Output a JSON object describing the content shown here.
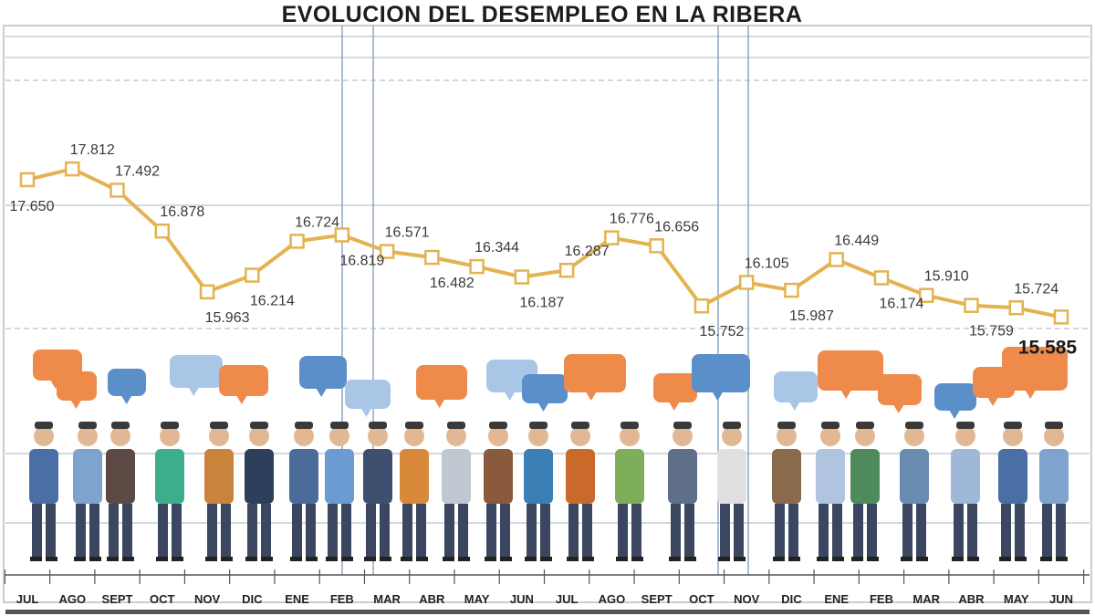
{
  "chart_data": {
    "type": "line",
    "title": "EVOLUCION DEL DESEMPLEO EN LA RIBERA",
    "categories": [
      "JUL",
      "AGO",
      "SEPT",
      "OCT",
      "NOV",
      "DIC",
      "ENE",
      "FEB",
      "MAR",
      "ABR",
      "MAY",
      "JUN",
      "JUL",
      "AGO",
      "SEPT",
      "OCT",
      "NOV",
      "DIC",
      "ENE",
      "FEB",
      "MAR",
      "ABR",
      "MAY",
      "JUN"
    ],
    "labels": [
      "17.650",
      "17.812",
      "17.492",
      "16.878",
      "15.963",
      "16.214",
      "16.724",
      "16.819",
      "16.571",
      "16.482",
      "16.344",
      "16.187",
      "16.287",
      "16.776",
      "16.656",
      "15.752",
      "16.105",
      "15.987",
      "16.449",
      "16.174",
      "15.910",
      "15.759",
      "15.724",
      "15.585"
    ],
    "values": [
      17650,
      17812,
      17492,
      16878,
      15963,
      16214,
      16724,
      16819,
      16571,
      16482,
      16344,
      16187,
      16287,
      16776,
      16656,
      15752,
      16105,
      15987,
      16449,
      16174,
      15910,
      15759,
      15724,
      15585
    ],
    "line_color": "#e3b350",
    "grid": true,
    "legend": "none"
  },
  "colors": {
    "bubble_orange": "#ee8a4a",
    "bubble_blue": "#5b8fca",
    "bubble_light_blue": "#aac6e6"
  }
}
